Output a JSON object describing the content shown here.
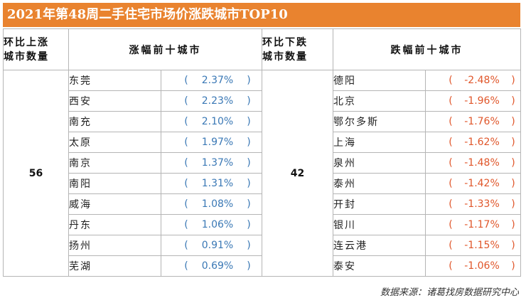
{
  "title": "2021年第48周二手住宅市场价涨跌城市TOP10",
  "headers": {
    "up_count_l1": "环比上涨",
    "up_count_l2": "城市数量",
    "up_rank": "涨幅前十城市",
    "down_count_l1": "环比下跌",
    "down_count_l2": "城市数量",
    "down_rank": "跌幅前十城市"
  },
  "up_count": "56",
  "down_count": "42",
  "paren_open": "(",
  "paren_close": ")",
  "up_cities": [
    {
      "city": "东莞",
      "value": "2.37%"
    },
    {
      "city": "西安",
      "value": "2.23%"
    },
    {
      "city": "南充",
      "value": "2.10%"
    },
    {
      "city": "太原",
      "value": "1.97%"
    },
    {
      "city": "南京",
      "value": "1.37%"
    },
    {
      "city": "南阳",
      "value": "1.31%"
    },
    {
      "city": "威海",
      "value": "1.08%"
    },
    {
      "city": "丹东",
      "value": "1.06%"
    },
    {
      "city": "扬州",
      "value": "0.91%"
    },
    {
      "city": "芜湖",
      "value": "0.69%"
    }
  ],
  "down_cities": [
    {
      "city": "德阳",
      "value": "-2.48%"
    },
    {
      "city": "北京",
      "value": "-1.96%"
    },
    {
      "city": "鄂尔多斯",
      "value": "-1.76%"
    },
    {
      "city": "上海",
      "value": "-1.62%"
    },
    {
      "city": "泉州",
      "value": "-1.48%"
    },
    {
      "city": "泰州",
      "value": "-1.42%"
    },
    {
      "city": "开封",
      "value": "-1.33%"
    },
    {
      "city": "银川",
      "value": "-1.17%"
    },
    {
      "city": "连云港",
      "value": "-1.15%"
    },
    {
      "city": "泰安",
      "value": "-1.06%"
    }
  ],
  "source": "数据来源：诸葛找房数据研究中心",
  "colors": {
    "title_bg": "#e9832f",
    "up_value": "#3a78b5",
    "down_value": "#e0562a",
    "grid": "#b5b5b5"
  }
}
